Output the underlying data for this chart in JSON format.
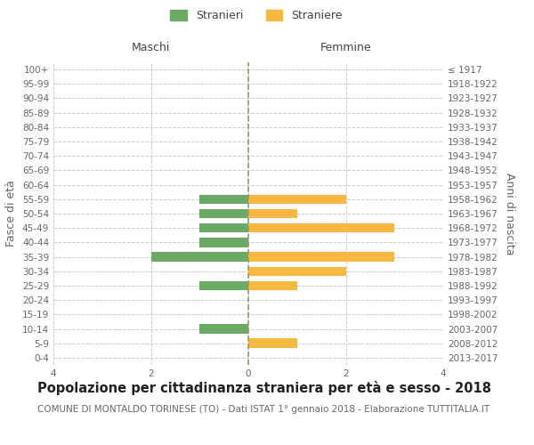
{
  "age_groups": [
    "0-4",
    "5-9",
    "10-14",
    "15-19",
    "20-24",
    "25-29",
    "30-34",
    "35-39",
    "40-44",
    "45-49",
    "50-54",
    "55-59",
    "60-64",
    "65-69",
    "70-74",
    "75-79",
    "80-84",
    "85-89",
    "90-94",
    "95-99",
    "100+"
  ],
  "birth_years": [
    "2013-2017",
    "2008-2012",
    "2003-2007",
    "1998-2002",
    "1993-1997",
    "1988-1992",
    "1983-1987",
    "1978-1982",
    "1973-1977",
    "1968-1972",
    "1963-1967",
    "1958-1962",
    "1953-1957",
    "1948-1952",
    "1943-1947",
    "1938-1942",
    "1933-1937",
    "1928-1932",
    "1923-1927",
    "1918-1922",
    "≤ 1917"
  ],
  "maschi": [
    0,
    0,
    1,
    0,
    0,
    1,
    0,
    2,
    1,
    1,
    1,
    1,
    0,
    0,
    0,
    0,
    0,
    0,
    0,
    0,
    0
  ],
  "femmine": [
    0,
    1,
    0,
    0,
    0,
    1,
    2,
    3,
    0,
    3,
    1,
    2,
    0,
    0,
    0,
    0,
    0,
    0,
    0,
    0,
    0
  ],
  "male_color": "#6aaa64",
  "female_color": "#f5b942",
  "background_color": "#ffffff",
  "grid_color": "#cccccc",
  "center_line_color": "#999966",
  "title": "Popolazione per cittadinanza straniera per età e sesso - 2018",
  "subtitle": "COMUNE DI MONTALDO TORINESE (TO) - Dati ISTAT 1° gennaio 2018 - Elaborazione TUTTITALIA.IT",
  "xlabel_left": "Maschi",
  "xlabel_right": "Femmine",
  "ylabel_left": "Fasce di età",
  "ylabel_right": "Anni di nascita",
  "legend_male": "Stranieri",
  "legend_female": "Straniere",
  "xlim": 4,
  "title_fontsize": 10.5,
  "subtitle_fontsize": 7.5,
  "tick_fontsize": 7.5,
  "label_fontsize": 9
}
